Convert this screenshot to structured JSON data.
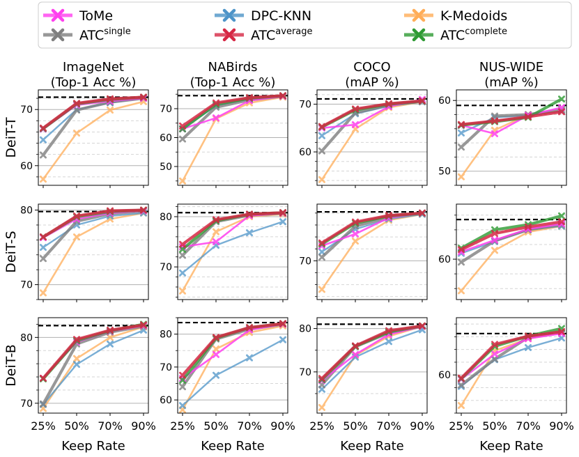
{
  "legend": {
    "entries": [
      {
        "base": "ToMe",
        "sup": "",
        "color": "#ff3fef"
      },
      {
        "base": "ATC",
        "sup": "single",
        "color": "#7f7f7f"
      },
      {
        "base": "DPC-KNN",
        "sup": "",
        "color": "#4d94c8"
      },
      {
        "base": "ATC",
        "sup": "average",
        "color": "#d62744"
      },
      {
        "base": "K-Medoids",
        "sup": "",
        "color": "#ffad58"
      },
      {
        "base": "ATC",
        "sup": "complete",
        "color": "#2e9a33"
      }
    ]
  },
  "columns": [
    {
      "title": "ImageNet",
      "subtitle": "(Top-1 Acc %)"
    },
    {
      "title": "NABirds",
      "subtitle": "(Top-1 Acc %)"
    },
    {
      "title": "COCO",
      "subtitle": "(mAP %)"
    },
    {
      "title": "NUS-WIDE",
      "subtitle": "(mAP %)"
    }
  ],
  "rows": [
    {
      "label": "DeiT-T"
    },
    {
      "label": "DeiT-S"
    },
    {
      "label": "DeiT-B"
    }
  ],
  "x_axis": {
    "label": "Keep Rate",
    "ticks": [
      "25%",
      "50%",
      "70%",
      "90%"
    ]
  },
  "chart_data": [
    {
      "type": "line",
      "row": "DeiT-T",
      "column": "ImageNet",
      "ylim": [
        56.5,
        73.5
      ],
      "yticks": [
        60,
        70
      ],
      "baseline": 72.2,
      "series": [
        {
          "name": "K-Medoids",
          "values": [
            57.6,
            65.8,
            69.9,
            71.4
          ]
        },
        {
          "name": "DPC-KNN",
          "values": [
            64.6,
            70.0,
            71.2,
            72.0
          ]
        },
        {
          "name": "ATC single",
          "values": [
            61.9,
            69.9,
            71.3,
            72.0
          ]
        },
        {
          "name": "ToMe",
          "values": [
            66.5,
            70.8,
            71.5,
            72.0
          ]
        },
        {
          "name": "ATC complete",
          "values": [
            66.6,
            71.0,
            71.8,
            72.2
          ]
        },
        {
          "name": "ATC average",
          "values": [
            66.7,
            71.1,
            71.9,
            72.2
          ]
        }
      ]
    },
    {
      "type": "line",
      "row": "DeiT-T",
      "column": "NABirds",
      "ylim": [
        43.5,
        76.5
      ],
      "yticks": [
        50,
        60,
        70
      ],
      "baseline": 74.5,
      "series": [
        {
          "name": "K-Medoids",
          "values": [
            45.0,
            66.5,
            72.0,
            74.0
          ]
        },
        {
          "name": "DPC-KNN",
          "values": [
            63.0,
            71.0,
            73.3,
            74.3
          ]
        },
        {
          "name": "ATC single",
          "values": [
            59.5,
            70.5,
            73.0,
            74.3
          ]
        },
        {
          "name": "ToMe",
          "values": [
            63.0,
            66.8,
            72.8,
            74.3
          ]
        },
        {
          "name": "ATC complete",
          "values": [
            63.0,
            71.5,
            73.6,
            74.5
          ]
        },
        {
          "name": "ATC average",
          "values": [
            64.0,
            72.0,
            73.8,
            74.5
          ]
        }
      ]
    },
    {
      "type": "line",
      "row": "DeiT-T",
      "column": "COCO",
      "ylim": [
        53,
        73
      ],
      "yticks": [
        60,
        70
      ],
      "baseline": 71.1,
      "series": [
        {
          "name": "K-Medoids",
          "values": [
            54.2,
            64.8,
            69.3,
            70.5
          ]
        },
        {
          "name": "DPC-KNN",
          "values": [
            63.4,
            68.0,
            69.6,
            70.5
          ]
        },
        {
          "name": "ATC single",
          "values": [
            60.2,
            68.2,
            69.8,
            70.6
          ]
        },
        {
          "name": "ToMe",
          "values": [
            65.0,
            65.7,
            69.5,
            71.0
          ]
        },
        {
          "name": "ATC complete",
          "values": [
            65.2,
            68.8,
            70.0,
            70.7
          ]
        },
        {
          "name": "ATC average",
          "values": [
            65.3,
            69.0,
            70.1,
            70.7
          ]
        }
      ]
    },
    {
      "type": "line",
      "row": "DeiT-T",
      "column": "NUS-WIDE",
      "ylim": [
        48,
        61.5
      ],
      "yticks": [
        50,
        60
      ],
      "baseline": 59.3,
      "series": [
        {
          "name": "K-Medoids",
          "values": [
            49.2,
            55.8,
            58.0,
            58.5
          ]
        },
        {
          "name": "DPC-KNN",
          "values": [
            55.4,
            57.6,
            57.9,
            58.5
          ]
        },
        {
          "name": "ATC single",
          "values": [
            53.4,
            57.8,
            58.0,
            58.7
          ]
        },
        {
          "name": "ToMe",
          "values": [
            56.5,
            55.3,
            57.9,
            59.0
          ]
        },
        {
          "name": "ATC complete",
          "values": [
            56.5,
            57.0,
            57.6,
            60.2
          ]
        },
        {
          "name": "ATC average",
          "values": [
            56.6,
            57.1,
            57.7,
            58.4
          ]
        }
      ]
    },
    {
      "type": "line",
      "row": "DeiT-S",
      "column": "ImageNet",
      "ylim": [
        68,
        80.8
      ],
      "yticks": [
        70,
        80
      ],
      "baseline": 79.8,
      "series": [
        {
          "name": "K-Medoids",
          "values": [
            68.9,
            76.4,
            78.8,
            79.6
          ]
        },
        {
          "name": "DPC-KNN",
          "values": [
            75.0,
            78.0,
            79.2,
            79.6
          ]
        },
        {
          "name": "ATC single",
          "values": [
            73.5,
            78.5,
            79.5,
            79.9
          ]
        },
        {
          "name": "ToMe",
          "values": [
            76.3,
            78.8,
            79.6,
            79.9
          ]
        },
        {
          "name": "ATC complete",
          "values": [
            76.4,
            79.1,
            79.8,
            80.0
          ]
        },
        {
          "name": "ATC average",
          "values": [
            76.4,
            79.2,
            79.9,
            80.0
          ]
        }
      ]
    },
    {
      "type": "line",
      "row": "DeiT-S",
      "column": "NABirds",
      "ylim": [
        63.5,
        82.5
      ],
      "yticks": [
        70,
        80
      ],
      "baseline": 80.8,
      "series": [
        {
          "name": "K-Medoids",
          "values": [
            65.2,
            77.0,
            80.0,
            80.5
          ]
        },
        {
          "name": "DPC-KNN",
          "values": [
            68.8,
            74.3,
            76.8,
            79.0
          ]
        },
        {
          "name": "ATC single",
          "values": [
            72.3,
            79.0,
            80.3,
            80.7
          ]
        },
        {
          "name": "ToMe",
          "values": [
            74.0,
            75.0,
            80.2,
            80.7
          ]
        },
        {
          "name": "ATC complete",
          "values": [
            73.5,
            79.2,
            80.5,
            80.8
          ]
        },
        {
          "name": "ATC average",
          "values": [
            74.5,
            79.4,
            80.5,
            80.8
          ]
        }
      ]
    },
    {
      "type": "line",
      "row": "DeiT-S",
      "column": "COCO",
      "ylim": [
        63.5,
        79.5
      ],
      "yticks": [
        70
      ],
      "baseline": 78.2,
      "series": [
        {
          "name": "K-Medoids",
          "values": [
            65.2,
            73.3,
            76.8,
            77.8
          ]
        },
        {
          "name": "DPC-KNN",
          "values": [
            71.5,
            75.3,
            77.0,
            77.8
          ]
        },
        {
          "name": "ATC single",
          "values": [
            70.6,
            75.8,
            77.3,
            78.0
          ]
        },
        {
          "name": "ToMe",
          "values": [
            72.5,
            74.5,
            77.2,
            78.0
          ]
        },
        {
          "name": "ATC complete",
          "values": [
            72.8,
            76.3,
            77.5,
            78.0
          ]
        },
        {
          "name": "ATC average",
          "values": [
            73.0,
            76.5,
            77.6,
            78.0
          ]
        }
      ]
    },
    {
      "type": "line",
      "row": "DeiT-S",
      "column": "NUS-WIDE",
      "ylim": [
        54.5,
        67.5
      ],
      "yticks": [
        60
      ],
      "baseline": 65.4,
      "series": [
        {
          "name": "K-Medoids",
          "values": [
            55.7,
            61.2,
            63.7,
            64.5
          ]
        },
        {
          "name": "DPC-KNN",
          "values": [
            60.8,
            62.4,
            64.0,
            64.5
          ]
        },
        {
          "name": "ATC single",
          "values": [
            59.6,
            62.5,
            64.0,
            64.7
          ]
        },
        {
          "name": "ToMe",
          "values": [
            61.0,
            62.6,
            64.1,
            64.8
          ]
        },
        {
          "name": "ATC complete",
          "values": [
            61.5,
            64.0,
            64.7,
            65.9
          ]
        },
        {
          "name": "ATC average",
          "values": [
            61.3,
            63.5,
            64.4,
            65.1
          ]
        }
      ]
    },
    {
      "type": "line",
      "row": "DeiT-B",
      "column": "ImageNet",
      "ylim": [
        68.5,
        83
      ],
      "yticks": [
        70,
        80
      ],
      "baseline": 81.8,
      "series": [
        {
          "name": "K-Medoids",
          "values": [
            69.2,
            76.8,
            80.0,
            81.6
          ]
        },
        {
          "name": "DPC-KNN",
          "values": [
            69.8,
            75.9,
            79.0,
            81.1
          ]
        },
        {
          "name": "ATC single",
          "values": [
            69.9,
            79.0,
            80.8,
            81.7
          ]
        },
        {
          "name": "ToMe",
          "values": [
            73.8,
            79.3,
            80.9,
            81.8
          ]
        },
        {
          "name": "ATC complete",
          "values": [
            73.7,
            79.5,
            81.0,
            82.0
          ]
        },
        {
          "name": "ATC average",
          "values": [
            73.8,
            79.7,
            81.1,
            81.9
          ]
        }
      ]
    },
    {
      "type": "line",
      "row": "DeiT-B",
      "column": "NABirds",
      "ylim": [
        56,
        85
      ],
      "yticks": [
        60,
        70,
        80
      ],
      "baseline": 83.5,
      "series": [
        {
          "name": "K-Medoids",
          "values": [
            57.0,
            75.5,
            80.5,
            82.5
          ]
        },
        {
          "name": "DPC-KNN",
          "values": [
            58.3,
            67.5,
            72.8,
            78.3
          ]
        },
        {
          "name": "ATC single",
          "values": [
            64.0,
            78.5,
            81.5,
            83.0
          ]
        },
        {
          "name": "ToMe",
          "values": [
            66.5,
            73.8,
            81.3,
            83.0
          ]
        },
        {
          "name": "ATC complete",
          "values": [
            66.0,
            78.8,
            82.0,
            83.2
          ]
        },
        {
          "name": "ATC average",
          "values": [
            67.5,
            79.0,
            82.0,
            83.2
          ]
        }
      ]
    },
    {
      "type": "line",
      "row": "DeiT-B",
      "column": "COCO",
      "ylim": [
        60.5,
        82.5
      ],
      "yticks": [
        70,
        80
      ],
      "baseline": 81.0,
      "series": [
        {
          "name": "K-Medoids",
          "values": [
            61.8,
            73.8,
            78.2,
            80.5
          ]
        },
        {
          "name": "DPC-KNN",
          "values": [
            66.0,
            73.4,
            77.0,
            79.7
          ]
        },
        {
          "name": "ATC single",
          "values": [
            67.0,
            75.8,
            79.0,
            80.5
          ]
        },
        {
          "name": "ToMe",
          "values": [
            68.0,
            74.0,
            78.6,
            80.5
          ]
        },
        {
          "name": "ATC complete",
          "values": [
            68.2,
            75.9,
            79.2,
            80.6
          ]
        },
        {
          "name": "ATC average",
          "values": [
            68.5,
            76.0,
            79.5,
            80.6
          ]
        }
      ]
    },
    {
      "type": "line",
      "row": "DeiT-B",
      "column": "NUS-WIDE",
      "ylim": [
        54,
        69
      ],
      "yticks": [
        60
      ],
      "baseline": 66.5,
      "series": [
        {
          "name": "K-Medoids",
          "values": [
            55.2,
            63.8,
            65.7,
            66.6
          ]
        },
        {
          "name": "DPC-KNN",
          "values": [
            58.2,
            62.4,
            64.3,
            65.8
          ]
        },
        {
          "name": "ATC single",
          "values": [
            58.4,
            62.5,
            65.9,
            66.8
          ]
        },
        {
          "name": "ToMe",
          "values": [
            59.3,
            63.3,
            65.7,
            66.5
          ]
        },
        {
          "name": "ATC complete",
          "values": [
            59.4,
            64.5,
            66.1,
            67.3
          ]
        },
        {
          "name": "ATC average",
          "values": [
            59.5,
            64.8,
            66.1,
            66.8
          ]
        }
      ]
    }
  ]
}
